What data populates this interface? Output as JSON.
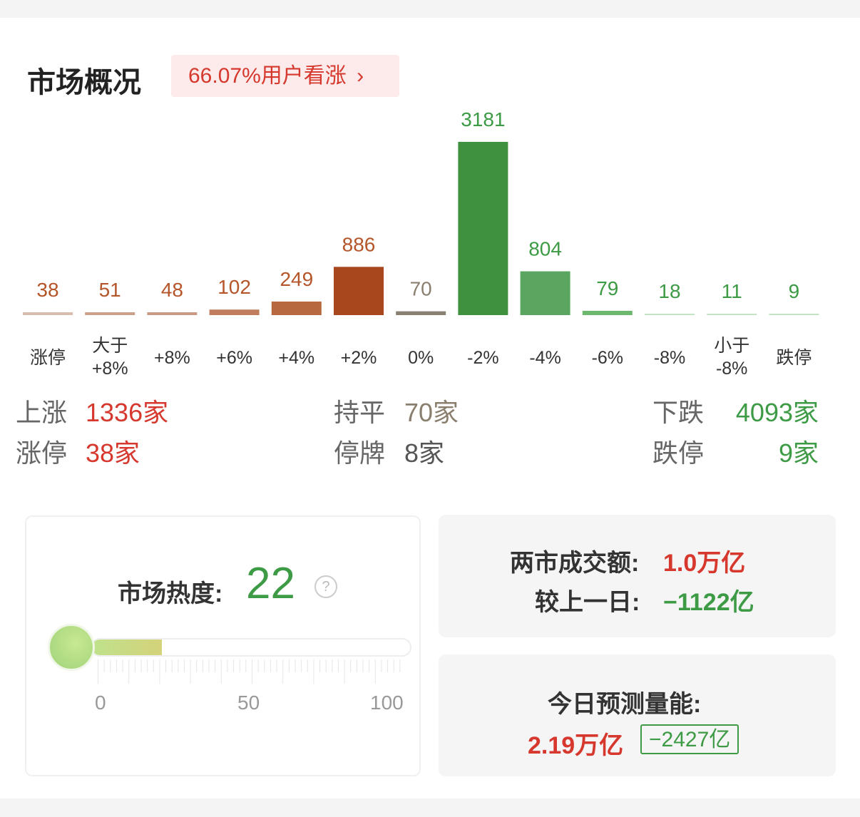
{
  "header": {
    "title": "市场概况",
    "sentiment_badge": "66.07%用户看涨",
    "badge_arrow": "›"
  },
  "chart_data": {
    "type": "bar",
    "categories": [
      "涨停",
      "大于\n+8%",
      "+8%",
      "+6%",
      "+4%",
      "+2%",
      "0%",
      "-2%",
      "-4%",
      "-6%",
      "-8%",
      "小于\n-8%",
      "跌停"
    ],
    "values": [
      38,
      51,
      48,
      102,
      249,
      886,
      70,
      3181,
      804,
      79,
      18,
      11,
      9
    ],
    "colors": [
      "#d8bcad",
      "#caa08c",
      "#c99984",
      "#c07e5e",
      "#b8683f",
      "#a8461e",
      "#8a8072",
      "#3f9140",
      "#5aa660",
      "#6bb86e",
      "#c4e2c4",
      "#c4e2c4",
      "#c4e2c4"
    ],
    "label_colors": [
      "#b5552a",
      "#b5552a",
      "#b5552a",
      "#b5552a",
      "#b5552a",
      "#b5552a",
      "#8a7f6f",
      "#3d9a45",
      "#3d9a45",
      "#3d9a45",
      "#3d9a45",
      "#3d9a45",
      "#3d9a45"
    ]
  },
  "stats": {
    "up_label": "上涨",
    "up_value": "1336家",
    "flat_label": "持平",
    "flat_value": "70家",
    "down_label": "下跌",
    "down_value": "4093家",
    "limit_up_label": "涨停",
    "limit_up_value": "38家",
    "suspended_label": "停牌",
    "suspended_value": "8家",
    "limit_down_label": "跌停",
    "limit_down_value": "9家"
  },
  "heat": {
    "label": "市场热度:",
    "value": "22",
    "level": 22,
    "scale": [
      "0",
      "50",
      "100"
    ],
    "help": "?"
  },
  "turnover": {
    "label": "两市成交额:",
    "value": "1.0万亿",
    "compare_label": "较上一日:",
    "compare_value": "−1122亿"
  },
  "forecast": {
    "label": "今日预测量能:",
    "value": "2.19万亿",
    "delta": "−2427亿"
  }
}
